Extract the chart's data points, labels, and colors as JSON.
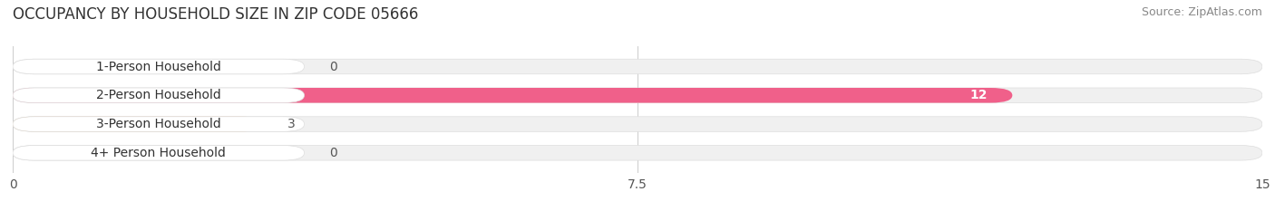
{
  "title": "OCCUPANCY BY HOUSEHOLD SIZE IN ZIP CODE 05666",
  "source": "Source: ZipAtlas.com",
  "categories": [
    "1-Person Household",
    "2-Person Household",
    "3-Person Household",
    "4+ Person Household"
  ],
  "values": [
    0,
    12,
    3,
    0
  ],
  "bar_colors": [
    "#b0b8e0",
    "#f0608a",
    "#f5c078",
    "#f09888"
  ],
  "value_colors": [
    "#555555",
    "#ffffff",
    "#555555",
    "#555555"
  ],
  "xlim": [
    0,
    15
  ],
  "xticks": [
    0,
    7.5,
    15
  ],
  "bar_height": 0.52,
  "title_fontsize": 12,
  "source_fontsize": 9,
  "label_fontsize": 10,
  "value_fontsize": 10,
  "tick_fontsize": 10,
  "background_color": "#ffffff",
  "bg_bar_color": "#f0f0f0",
  "label_box_color": "#ffffff"
}
